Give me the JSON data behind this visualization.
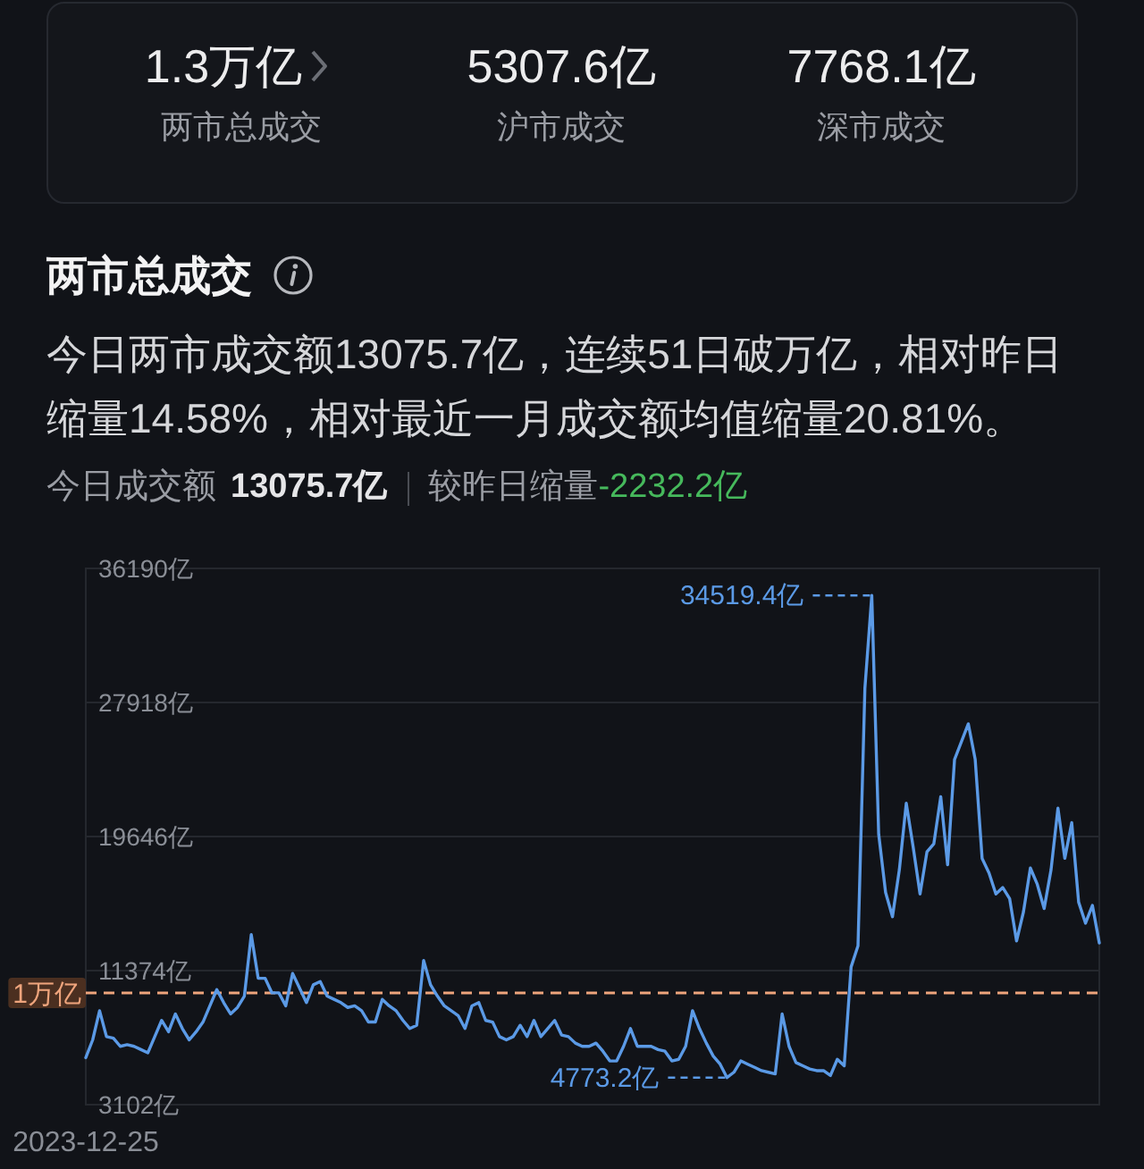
{
  "chart_data": [
    {
      "type": "other",
      "annotations": [
        "1.3万亿",
        "两市总成交",
        "5307.6亿",
        "沪市成交",
        "7768.1亿",
        "深市成交"
      ]
    },
    {
      "type": "line",
      "title": "两市总成交",
      "subtitle": "今日两市成交额13075.7亿，连续51日破万亿，相对昨日缩量14.58%，相对最近一月成交额均值缩量20.81%。",
      "annotations": [
        "今日成交额",
        "13075.7亿",
        "较昨日缩量",
        "-2232.2亿",
        "34519.4亿",
        "4773.2亿"
      ],
      "categories": [
        "2023-12-25",
        null,
        null,
        null,
        null,
        null,
        null,
        null,
        null,
        null,
        null,
        null,
        null,
        null,
        null,
        null,
        null,
        null,
        null,
        null,
        null,
        null,
        null,
        null,
        null,
        null,
        null,
        null,
        null,
        null,
        null,
        null,
        null,
        null,
        null,
        null,
        null,
        null,
        null,
        null,
        null,
        null,
        null,
        null,
        null,
        null,
        null,
        null,
        null,
        null,
        null,
        null,
        null,
        null,
        null,
        null,
        null,
        null,
        null,
        null,
        null,
        null,
        null,
        null,
        null,
        null,
        null,
        null,
        null,
        null,
        null,
        null,
        null,
        null,
        null,
        null,
        null,
        null,
        null,
        null,
        null,
        null,
        null,
        null,
        null,
        null,
        null,
        null,
        null,
        null,
        null,
        null,
        null,
        null,
        null,
        null,
        null,
        null,
        null,
        null,
        null,
        null,
        null,
        null,
        null,
        null,
        null,
        null,
        null,
        null,
        null,
        null,
        null,
        null,
        null,
        null,
        null,
        null,
        null,
        null,
        null,
        null,
        null,
        null,
        null,
        null,
        null,
        null,
        null,
        null,
        null,
        null,
        null,
        null,
        null,
        null,
        null,
        null,
        null,
        null,
        null,
        null,
        null,
        null,
        null,
        null,
        null,
        null
      ],
      "series": [
        {
          "color": "#5b9ae6",
          "values": [
            6000,
            7100,
            8900,
            7300,
            7200,
            6700,
            6800,
            6700,
            6500,
            6300,
            7300,
            8300,
            7600,
            8700,
            7800,
            7100,
            7600,
            8200,
            9200,
            10200,
            9400,
            8700,
            9100,
            9800,
            13600,
            10900,
            10900,
            10000,
            10000,
            9200,
            11200,
            10300,
            9400,
            10500,
            10700,
            9800,
            9600,
            9400,
            9100,
            9200,
            8900,
            8200,
            8200,
            9600,
            9200,
            8900,
            8300,
            7800,
            8000,
            12000,
            10500,
            9800,
            9200,
            8900,
            8600,
            7800,
            9200,
            9400,
            8300,
            8200,
            7300,
            7100,
            7300,
            8000,
            7300,
            8300,
            7300,
            7800,
            8300,
            7400,
            7300,
            6900,
            6700,
            6700,
            6900,
            6400,
            5800,
            5800,
            6700,
            7800,
            6700,
            6700,
            6700,
            6500,
            6400,
            5800,
            5900,
            6700,
            8900,
            7800,
            6900,
            6100,
            5600,
            4773.2,
            5100,
            5800,
            5600,
            5400,
            5200,
            5100,
            5000,
            8700,
            6700,
            5700,
            5500,
            5300,
            5200,
            5200,
            4900,
            5900,
            5500,
            11600,
            12900,
            28800,
            34519.4,
            19800,
            16200,
            14700,
            17600,
            21700,
            19000,
            16100,
            18700,
            19200,
            22100,
            17900,
            24400,
            25500,
            26600,
            24400,
            18300,
            17400,
            16100,
            16500,
            15800,
            13200,
            15000,
            17700,
            16700,
            15200,
            17600,
            21400,
            18300,
            20500,
            15600,
            14300,
            15400,
            13075.7
          ]
        }
      ],
      "ylim": [
        3102,
        36190
      ],
      "yticks": [
        {
          "value": 3102,
          "label": "3102亿"
        },
        {
          "value": 11374,
          "label": "11374亿"
        },
        {
          "value": 19646,
          "label": "19646亿"
        },
        {
          "value": 27918,
          "label": "27918亿"
        },
        {
          "value": 36190,
          "label": "36190亿"
        }
      ],
      "ref_lines": [
        {
          "axis": "y",
          "value": 10000,
          "label": "1万亿",
          "color": "#eea47c",
          "line_style": "dashed"
        }
      ],
      "grid": "y"
    }
  ]
}
